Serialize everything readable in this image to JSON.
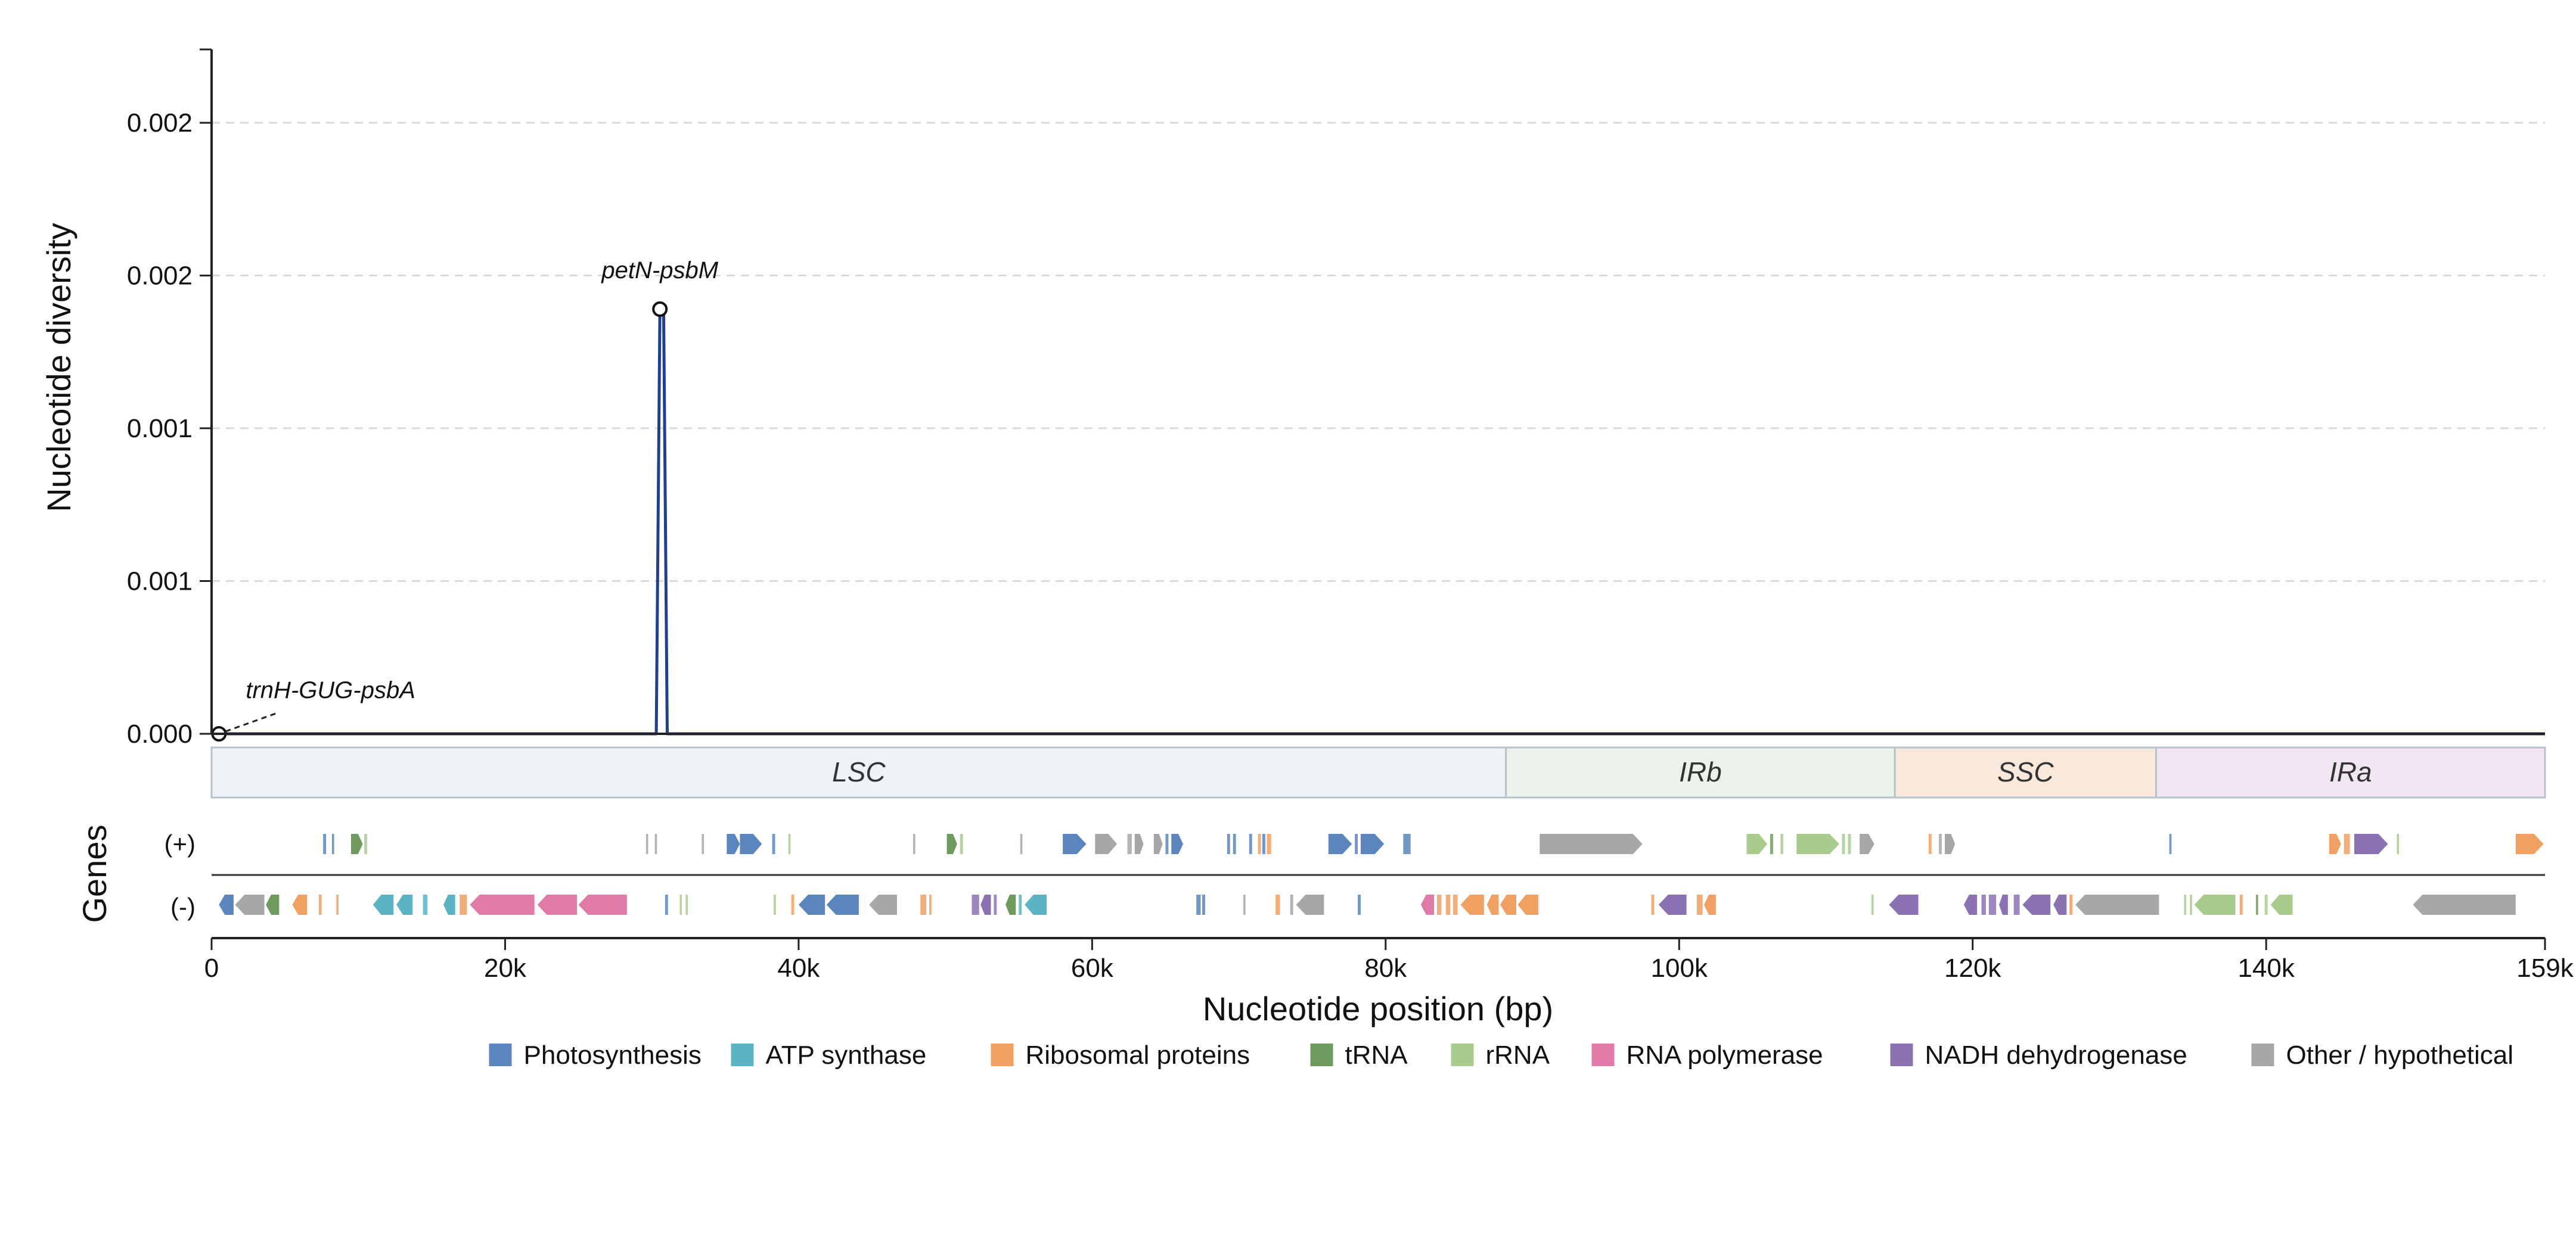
{
  "chart_data": {
    "type": "line",
    "xlabel": "Nucleotide position (bp)",
    "ylabel": "Nucleotide diversity",
    "xlim": [
      0,
      159000
    ],
    "ylim": [
      0,
      0.00224
    ],
    "grid": true,
    "y_ticks": [
      {
        "value": 0.0,
        "label": "0.000"
      },
      {
        "value": 0.0005,
        "label": "0.001"
      },
      {
        "value": 0.001,
        "label": "0.001"
      },
      {
        "value": 0.0015,
        "label": "0.002"
      },
      {
        "value": 0.002,
        "label": "0.002"
      }
    ],
    "x_ticks": [
      {
        "value": 0,
        "label": "0"
      },
      {
        "value": 20000,
        "label": "20k"
      },
      {
        "value": 40000,
        "label": "40k"
      },
      {
        "value": 60000,
        "label": "60k"
      },
      {
        "value": 80000,
        "label": "80k"
      },
      {
        "value": 100000,
        "label": "100k"
      },
      {
        "value": 120000,
        "label": "120k"
      },
      {
        "value": 140000,
        "label": "140k"
      },
      {
        "value": 159000,
        "label": "159k"
      }
    ],
    "series": [
      {
        "color": "#1f3f8f",
        "x": [
          0,
          30300,
          30550,
          30800,
          31050,
          159000
        ],
        "y": [
          0,
          0,
          0.00139,
          0.00139,
          0,
          0
        ]
      }
    ],
    "annotations": [
      {
        "text": "petN-psbM",
        "x": 30550,
        "y": 0.00139
      },
      {
        "text": "trnH-GUG-psbA",
        "x": 300,
        "y": 0
      }
    ],
    "regions": [
      {
        "label": "LSC",
        "start": 0,
        "end": 88200,
        "color": "#eef3f7"
      },
      {
        "label": "IRb",
        "start": 88200,
        "end": 114700,
        "color": "#ecf3ea"
      },
      {
        "label": "SSC",
        "start": 114700,
        "end": 132500,
        "color": "#f9e9dc"
      },
      {
        "label": "IRa",
        "start": 132500,
        "end": 159000,
        "color": "#f1e6f1"
      }
    ],
    "gene_track": {
      "title": "Genes",
      "strands": [
        {
          "label": "(+)",
          "genes": [
            {
              "start": 7600,
              "end": 7800,
              "cat": "photo"
            },
            {
              "start": 8200,
              "end": 8350,
              "cat": "photo"
            },
            {
              "start": 9500,
              "end": 10300,
              "cat": "trna"
            },
            {
              "start": 10400,
              "end": 10600,
              "cat": "rrna"
            },
            {
              "start": 29600,
              "end": 29750,
              "cat": "other"
            },
            {
              "start": 30200,
              "end": 30350,
              "cat": "other"
            },
            {
              "start": 33400,
              "end": 33550,
              "cat": "other"
            },
            {
              "start": 35100,
              "end": 36000,
              "cat": "photo"
            },
            {
              "start": 36000,
              "end": 37500,
              "cat": "photo"
            },
            {
              "start": 38200,
              "end": 38400,
              "cat": "photo"
            },
            {
              "start": 39300,
              "end": 39450,
              "cat": "rrna"
            },
            {
              "start": 47800,
              "end": 47950,
              "cat": "other"
            },
            {
              "start": 50100,
              "end": 50800,
              "cat": "trna"
            },
            {
              "start": 51000,
              "end": 51200,
              "cat": "rrna"
            },
            {
              "start": 55100,
              "end": 55250,
              "cat": "other"
            },
            {
              "start": 58000,
              "end": 59600,
              "cat": "photo"
            },
            {
              "start": 60200,
              "end": 61700,
              "cat": "other"
            },
            {
              "start": 62400,
              "end": 62700,
              "cat": "other"
            },
            {
              "start": 62900,
              "end": 63500,
              "cat": "other"
            },
            {
              "start": 64200,
              "end": 64800,
              "cat": "other"
            },
            {
              "start": 65000,
              "end": 65200,
              "cat": "photo"
            },
            {
              "start": 65400,
              "end": 66200,
              "cat": "photo"
            },
            {
              "start": 69200,
              "end": 69400,
              "cat": "photo"
            },
            {
              "start": 69600,
              "end": 69800,
              "cat": "photo"
            },
            {
              "start": 70700,
              "end": 70900,
              "cat": "photo"
            },
            {
              "start": 71300,
              "end": 71500,
              "cat": "ribo"
            },
            {
              "start": 71600,
              "end": 71800,
              "cat": "photo"
            },
            {
              "start": 71900,
              "end": 72200,
              "cat": "ribo"
            },
            {
              "start": 76100,
              "end": 77700,
              "cat": "photo"
            },
            {
              "start": 77900,
              "end": 78100,
              "cat": "photo"
            },
            {
              "start": 78300,
              "end": 79900,
              "cat": "photo"
            },
            {
              "start": 81200,
              "end": 81700,
              "cat": "photo"
            },
            {
              "start": 90500,
              "end": 97500,
              "cat": "other"
            },
            {
              "start": 104600,
              "end": 106000,
              "cat": "rrna"
            },
            {
              "start": 106200,
              "end": 106400,
              "cat": "trna"
            },
            {
              "start": 106900,
              "end": 107100,
              "cat": "rrna"
            },
            {
              "start": 108000,
              "end": 110900,
              "cat": "rrna"
            },
            {
              "start": 111100,
              "end": 111300,
              "cat": "rrna"
            },
            {
              "start": 111500,
              "end": 111700,
              "cat": "rrna"
            },
            {
              "start": 112300,
              "end": 113300,
              "cat": "other"
            },
            {
              "start": 117000,
              "end": 117200,
              "cat": "ribo"
            },
            {
              "start": 117700,
              "end": 117900,
              "cat": "other"
            },
            {
              "start": 118100,
              "end": 118800,
              "cat": "other"
            },
            {
              "start": 133400,
              "end": 133550,
              "cat": "photo"
            },
            {
              "start": 144300,
              "end": 145100,
              "cat": "ribo"
            },
            {
              "start": 145300,
              "end": 145700,
              "cat": "ribo"
            },
            {
              "start": 146000,
              "end": 148300,
              "cat": "nadh"
            },
            {
              "start": 148900,
              "end": 149050,
              "cat": "rrna"
            },
            {
              "start": 157000,
              "end": 158900,
              "cat": "ribo"
            }
          ]
        },
        {
          "label": "(-)",
          "genes": [
            {
              "start": 500,
              "end": 1500,
              "cat": "photo"
            },
            {
              "start": 1600,
              "end": 3600,
              "cat": "other"
            },
            {
              "start": 3700,
              "end": 4600,
              "cat": "trna"
            },
            {
              "start": 5500,
              "end": 6500,
              "cat": "ribo"
            },
            {
              "start": 7300,
              "end": 7500,
              "cat": "ribo"
            },
            {
              "start": 8500,
              "end": 8650,
              "cat": "ribo"
            },
            {
              "start": 11000,
              "end": 12400,
              "cat": "atp"
            },
            {
              "start": 12600,
              "end": 13700,
              "cat": "atp"
            },
            {
              "start": 14400,
              "end": 14700,
              "cat": "atp"
            },
            {
              "start": 15800,
              "end": 16600,
              "cat": "atp"
            },
            {
              "start": 16900,
              "end": 17400,
              "cat": "ribo"
            },
            {
              "start": 17600,
              "end": 22000,
              "cat": "rpol"
            },
            {
              "start": 22200,
              "end": 24900,
              "cat": "rpol"
            },
            {
              "start": 25000,
              "end": 28300,
              "cat": "rpol"
            },
            {
              "start": 30900,
              "end": 31100,
              "cat": "photo"
            },
            {
              "start": 31900,
              "end": 32050,
              "cat": "rrna"
            },
            {
              "start": 32300,
              "end": 32450,
              "cat": "rrna"
            },
            {
              "start": 38300,
              "end": 38450,
              "cat": "rrna"
            },
            {
              "start": 39500,
              "end": 39700,
              "cat": "ribo"
            },
            {
              "start": 40000,
              "end": 41800,
              "cat": "photo"
            },
            {
              "start": 41900,
              "end": 44100,
              "cat": "photo"
            },
            {
              "start": 44800,
              "end": 46700,
              "cat": "other"
            },
            {
              "start": 48300,
              "end": 48700,
              "cat": "ribo"
            },
            {
              "start": 48900,
              "end": 49050,
              "cat": "ribo"
            },
            {
              "start": 51800,
              "end": 52300,
              "cat": "nadh"
            },
            {
              "start": 52400,
              "end": 53100,
              "cat": "nadh"
            },
            {
              "start": 53300,
              "end": 53500,
              "cat": "nadh"
            },
            {
              "start": 54100,
              "end": 54800,
              "cat": "trna"
            },
            {
              "start": 55000,
              "end": 55200,
              "cat": "atp"
            },
            {
              "start": 55400,
              "end": 56900,
              "cat": "atp"
            },
            {
              "start": 67100,
              "end": 67400,
              "cat": "photo"
            },
            {
              "start": 67500,
              "end": 67700,
              "cat": "photo"
            },
            {
              "start": 70300,
              "end": 70450,
              "cat": "other"
            },
            {
              "start": 72500,
              "end": 72800,
              "cat": "ribo"
            },
            {
              "start": 73500,
              "end": 73700,
              "cat": "other"
            },
            {
              "start": 73900,
              "end": 75800,
              "cat": "other"
            },
            {
              "start": 78100,
              "end": 78300,
              "cat": "photo"
            },
            {
              "start": 82400,
              "end": 83300,
              "cat": "rpol"
            },
            {
              "start": 83500,
              "end": 83800,
              "cat": "ribo"
            },
            {
              "start": 84100,
              "end": 84400,
              "cat": "ribo"
            },
            {
              "start": 84600,
              "end": 84900,
              "cat": "ribo"
            },
            {
              "start": 85100,
              "end": 86700,
              "cat": "ribo"
            },
            {
              "start": 86900,
              "end": 87700,
              "cat": "ribo"
            },
            {
              "start": 87800,
              "end": 88900,
              "cat": "ribo"
            },
            {
              "start": 89000,
              "end": 90400,
              "cat": "ribo"
            },
            {
              "start": 98100,
              "end": 98300,
              "cat": "ribo"
            },
            {
              "start": 98600,
              "end": 100500,
              "cat": "nadh"
            },
            {
              "start": 101200,
              "end": 101600,
              "cat": "ribo"
            },
            {
              "start": 101700,
              "end": 102500,
              "cat": "ribo"
            },
            {
              "start": 113100,
              "end": 113250,
              "cat": "rrna"
            },
            {
              "start": 114300,
              "end": 116300,
              "cat": "nadh"
            },
            {
              "start": 119400,
              "end": 120300,
              "cat": "nadh"
            },
            {
              "start": 120600,
              "end": 120900,
              "cat": "nadh"
            },
            {
              "start": 121100,
              "end": 121600,
              "cat": "nadh"
            },
            {
              "start": 121800,
              "end": 122400,
              "cat": "nadh"
            },
            {
              "start": 122800,
              "end": 123200,
              "cat": "nadh"
            },
            {
              "start": 123400,
              "end": 125300,
              "cat": "nadh"
            },
            {
              "start": 125500,
              "end": 126400,
              "cat": "nadh"
            },
            {
              "start": 126600,
              "end": 126800,
              "cat": "ribo"
            },
            {
              "start": 127000,
              "end": 132700,
              "cat": "other"
            },
            {
              "start": 134400,
              "end": 134550,
              "cat": "rrna"
            },
            {
              "start": 134800,
              "end": 134950,
              "cat": "rrna"
            },
            {
              "start": 135100,
              "end": 137900,
              "cat": "rrna"
            },
            {
              "start": 138200,
              "end": 138400,
              "cat": "ribo"
            },
            {
              "start": 139300,
              "end": 139450,
              "cat": "trna"
            },
            {
              "start": 139900,
              "end": 140100,
              "cat": "rrna"
            },
            {
              "start": 140300,
              "end": 141800,
              "cat": "rrna"
            },
            {
              "start": 150000,
              "end": 157000,
              "cat": "other"
            }
          ]
        }
      ]
    },
    "legend": {
      "placement": "bottom-center",
      "entries": [
        {
          "key": "photo",
          "label": "Photosynthesis",
          "color": "#5b86bd"
        },
        {
          "key": "atp",
          "label": "ATP synthase",
          "color": "#5bb3c4"
        },
        {
          "key": "ribo",
          "label": "Ribosomal proteins",
          "color": "#f0a062"
        },
        {
          "key": "trna",
          "label": "tRNA",
          "color": "#6e9a5d"
        },
        {
          "key": "rrna",
          "label": "rRNA",
          "color": "#a9cc8c"
        },
        {
          "key": "rpol",
          "label": "RNA polymerase",
          "color": "#e07aa6"
        },
        {
          "key": "nadh",
          "label": "NADH dehydrogenase",
          "color": "#8b73b3"
        },
        {
          "key": "other",
          "label": "Other / hypothetical",
          "color": "#a7a7a7"
        }
      ]
    }
  }
}
